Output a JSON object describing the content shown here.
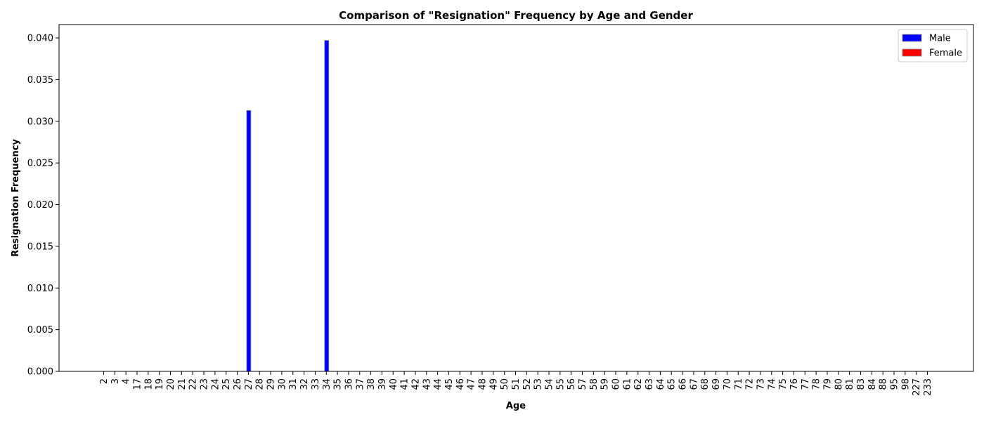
{
  "chart_data": {
    "type": "bar",
    "title": "Comparison of \"Resignation\" Frequency by Age and Gender",
    "xlabel": "Age",
    "ylabel": "Resignation Frequency",
    "ylim": [
      0,
      0.0416
    ],
    "yticks": [
      "0.000",
      "0.005",
      "0.010",
      "0.015",
      "0.020",
      "0.025",
      "0.030",
      "0.035",
      "0.040"
    ],
    "categories": [
      "2",
      "3",
      "4",
      "17",
      "18",
      "19",
      "20",
      "21",
      "22",
      "23",
      "24",
      "25",
      "26",
      "27",
      "28",
      "29",
      "30",
      "31",
      "32",
      "33",
      "34",
      "35",
      "36",
      "37",
      "38",
      "39",
      "40",
      "41",
      "42",
      "43",
      "44",
      "45",
      "46",
      "47",
      "48",
      "49",
      "50",
      "51",
      "52",
      "53",
      "54",
      "55",
      "56",
      "57",
      "58",
      "59",
      "60",
      "61",
      "62",
      "63",
      "64",
      "65",
      "66",
      "67",
      "68",
      "69",
      "70",
      "71",
      "72",
      "73",
      "74",
      "75",
      "76",
      "77",
      "78",
      "79",
      "80",
      "81",
      "83",
      "84",
      "88",
      "95",
      "98",
      "227",
      "233"
    ],
    "series": [
      {
        "name": "Male",
        "color": "#0000ff",
        "values": [
          0,
          0,
          0,
          0,
          0,
          0,
          0,
          0,
          0,
          0,
          0,
          0,
          0,
          0.0313,
          0,
          0,
          0,
          0,
          0,
          0,
          0.0397,
          0,
          0,
          0,
          0,
          0,
          0,
          0,
          0,
          0,
          0,
          0,
          0,
          0,
          0,
          0,
          0,
          0,
          0,
          0,
          0,
          0,
          0,
          0,
          0,
          0,
          0,
          0,
          0,
          0,
          0,
          0,
          0,
          0,
          0,
          0,
          0,
          0,
          0,
          0,
          0,
          0,
          0,
          0,
          0,
          0,
          0,
          0,
          0,
          0,
          0,
          0,
          0,
          0,
          0
        ]
      },
      {
        "name": "Female",
        "color": "#ff0000",
        "values": [
          0,
          0,
          0,
          0,
          0,
          0,
          0,
          0,
          0,
          0,
          0,
          0,
          0,
          0,
          0,
          0,
          0,
          0,
          0,
          0,
          0,
          0,
          0,
          0,
          0,
          0,
          0,
          0,
          0,
          0,
          0,
          0,
          0,
          0,
          0,
          0,
          0,
          0,
          0,
          0,
          0,
          0,
          0,
          0,
          0,
          0,
          0,
          0,
          0,
          0,
          0,
          0,
          0,
          0,
          0,
          0,
          0,
          0,
          0,
          0,
          0,
          0,
          0,
          0,
          0,
          0,
          0,
          0,
          0,
          0,
          0,
          0,
          0,
          0,
          0
        ]
      }
    ],
    "legend": "top-right",
    "grid": false
  }
}
